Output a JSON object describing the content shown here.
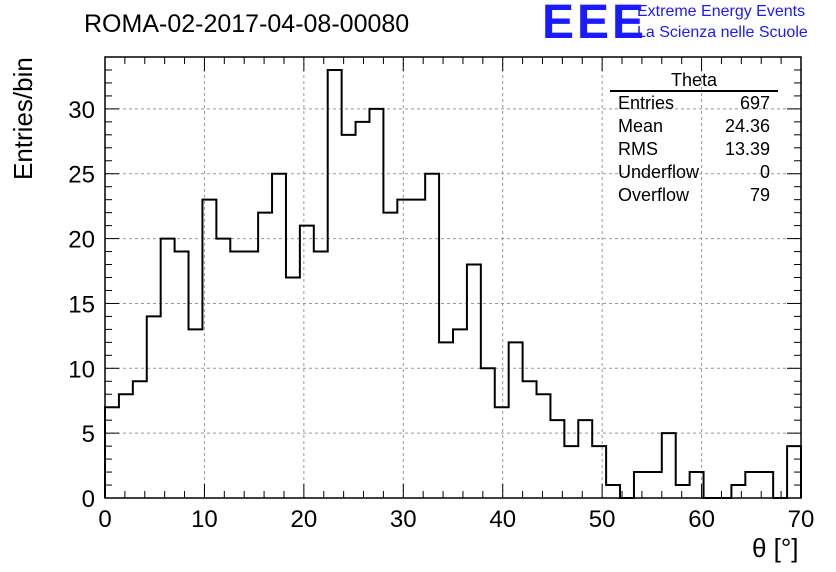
{
  "header": {
    "run_title": "ROMA-02-2017-04-08-00080",
    "logo_text": "EEE",
    "brand_line1": "Extreme Energy Events",
    "brand_line2": "La Scienza nelle Scuole",
    "logo_color": "#1a1aff"
  },
  "stats_box": {
    "name": "Theta",
    "rows": [
      {
        "label": "Entries",
        "value": "697"
      },
      {
        "label": "Mean",
        "value": "24.36"
      },
      {
        "label": "RMS",
        "value": "13.39"
      },
      {
        "label": "Underflow",
        "value": "0"
      },
      {
        "label": "Overflow",
        "value": "79"
      }
    ]
  },
  "chart_data": {
    "type": "histogram",
    "xlabel": "θ [°]",
    "ylabel": "Entries/bin",
    "xlim": [
      0,
      70
    ],
    "ylim": [
      0,
      34
    ],
    "grid": true,
    "bin_width": 1.4,
    "bin_edges_start": 0,
    "values": [
      7,
      8,
      9,
      14,
      20,
      19,
      13,
      23,
      20,
      19,
      19,
      22,
      25,
      17,
      21,
      19,
      33,
      28,
      29,
      30,
      22,
      23,
      23,
      25,
      12,
      13,
      18,
      10,
      7,
      12,
      9,
      8,
      6,
      4,
      6,
      4,
      1,
      0,
      2,
      2,
      5,
      1,
      2,
      0,
      0,
      1,
      2,
      2,
      0,
      4
    ],
    "x_ticks": [
      0,
      10,
      20,
      30,
      40,
      50,
      60,
      70
    ],
    "y_ticks": [
      0,
      5,
      10,
      15,
      20,
      25,
      30
    ],
    "line_color": "#000000",
    "grid_color": "#999999"
  }
}
